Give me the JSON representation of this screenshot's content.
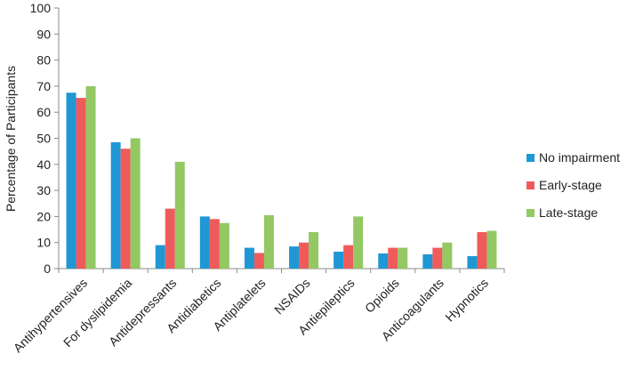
{
  "chart_data": {
    "type": "bar",
    "ylabel": "Percentage of Participants",
    "ylim": [
      0,
      100
    ],
    "ytick_step": 10,
    "grid": false,
    "legend_position": "right",
    "categories": [
      "Antihypertensives",
      "For dyslipidemia",
      "Antidepressants",
      "Antidiabetics",
      "Antiplatelets",
      "NSAIDs",
      "Antiepileptics",
      "Opioids",
      "Anticoagulants",
      "Hypnotics"
    ],
    "series": [
      {
        "name": "No impairment",
        "color": "#1f97d4",
        "values": [
          67.5,
          48.5,
          9,
          20,
          8,
          8.5,
          6.5,
          5.8,
          5.5,
          4.8
        ]
      },
      {
        "name": "Early-stage",
        "color": "#ef5b5b",
        "values": [
          65.5,
          46,
          23,
          19,
          6,
          10,
          9,
          8,
          8,
          14
        ]
      },
      {
        "name": "Late-stage",
        "color": "#93c863",
        "values": [
          70,
          50,
          41,
          17.5,
          20.5,
          14,
          20,
          8,
          10,
          14.5
        ]
      }
    ]
  }
}
